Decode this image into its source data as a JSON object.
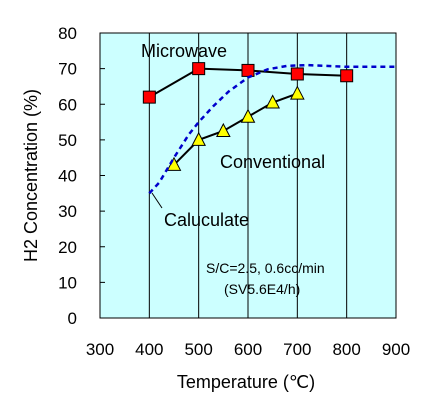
{
  "chart_data": {
    "type": "line",
    "xlabel": "Temperature (℃)",
    "ylabel": "H2 Concentration (%)",
    "xlim": [
      300,
      900
    ],
    "ylim": [
      0,
      80
    ],
    "x_ticks": [
      "300",
      "400",
      "500",
      "600",
      "700",
      "800",
      "900"
    ],
    "y_ticks": [
      "0",
      "10",
      "20",
      "30",
      "40",
      "50",
      "60",
      "70",
      "80"
    ],
    "grid": "vertical",
    "background": "#ccffff",
    "series": [
      {
        "name": "Microwave",
        "marker": "square",
        "color": "#ff0000",
        "line_color": "#000000",
        "points": [
          [
            400,
            62
          ],
          [
            500,
            70
          ],
          [
            600,
            69.5
          ],
          [
            700,
            68.5
          ],
          [
            800,
            68
          ]
        ]
      },
      {
        "name": "Conventional",
        "marker": "triangle",
        "color": "#ffff00",
        "line_color": "#000000",
        "points": [
          [
            450,
            43
          ],
          [
            500,
            50
          ],
          [
            550,
            52.5
          ],
          [
            600,
            56.5
          ],
          [
            650,
            60.5
          ],
          [
            700,
            63
          ]
        ]
      },
      {
        "name": "Caluculate",
        "style": "dashed",
        "line_color": "#0000cc",
        "points": [
          [
            400,
            35
          ],
          [
            420,
            38
          ],
          [
            450,
            45
          ],
          [
            480,
            51.5
          ],
          [
            500,
            55
          ],
          [
            530,
            59.5
          ],
          [
            560,
            63.5
          ],
          [
            600,
            67.5
          ],
          [
            640,
            69.8
          ],
          [
            680,
            70.8
          ],
          [
            720,
            71
          ],
          [
            800,
            70.5
          ],
          [
            850,
            70.5
          ],
          [
            900,
            70.5
          ]
        ]
      }
    ],
    "annotations": {
      "microwave": "Microwave",
      "conventional": "Conventional",
      "calculate": "Caluculate",
      "condition_line1": "S/C=2.5, 0.6cc/min",
      "condition_line2": "(SV5.6E4/h)"
    }
  }
}
